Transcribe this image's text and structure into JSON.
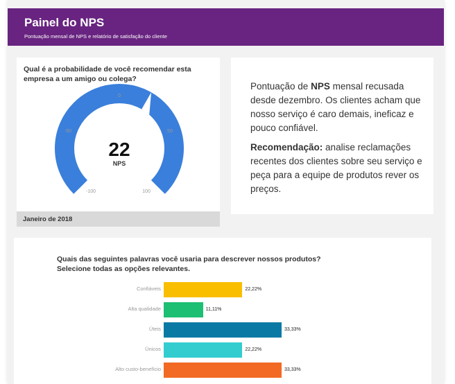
{
  "header": {
    "title": "Painel do NPS",
    "subtitle": "Pontuação mensal de NPS e relatório de satisfação do cliente"
  },
  "gauge": {
    "question": "Qual é a probabilidade de você recomendar esta empresa a um amigo ou colega?",
    "value": "22",
    "unit": "NPS",
    "nps_score": 22,
    "range": [
      -100,
      100
    ],
    "ticks": [
      "0",
      "-50",
      "50",
      "-100",
      "100"
    ],
    "color": "#3a7fdb",
    "footer": "Janeiro de 2018"
  },
  "insight": {
    "p1_pre": "Pontuação de ",
    "p1_bold": "NPS",
    "p1_post": " mensal recusada desde dezembro. Os clientes acham que nosso serviço é caro demais, ineficaz e pouco confiável.",
    "p2_bold": "Recomendação:",
    "p2_post": " analise reclamações recentes dos clientes sobre seu serviço e peça para a equipe de produtos rever os preços."
  },
  "bars": {
    "question": "Quais das seguintes palavras você usaria para descrever nossos produtos? Selecione todas as opções relevantes."
  },
  "chart_data": {
    "type": "bar",
    "orientation": "horizontal",
    "categories": [
      "Confiáveis",
      "Alta qualidade",
      "Úteis",
      "Únicos",
      "Alto custo-benefício"
    ],
    "values": [
      22.22,
      11.11,
      33.33,
      22.22,
      33.33
    ],
    "value_labels": [
      "22,22%",
      "11,11%",
      "33,33%",
      "22,22%",
      "33,33%"
    ],
    "colors": [
      "#f9be00",
      "#1dbf73",
      "#0a7aa5",
      "#33cdd0",
      "#f26a24"
    ],
    "xlim": [
      0,
      33.33
    ]
  }
}
